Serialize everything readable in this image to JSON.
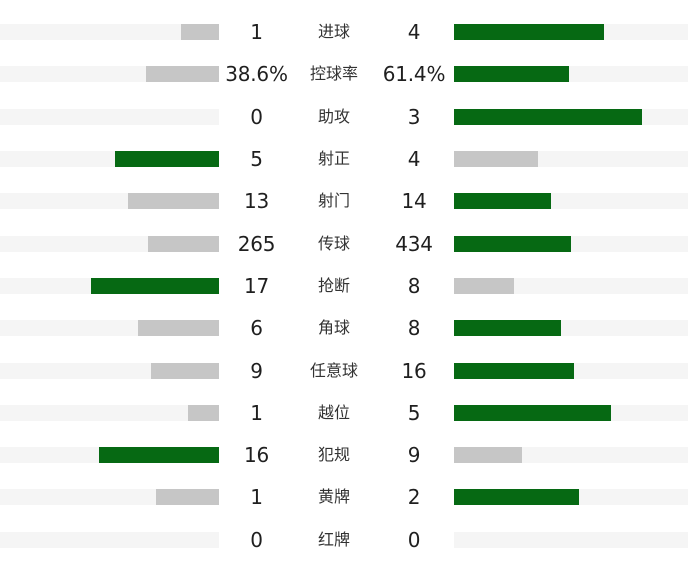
{
  "colors": {
    "background": "#ffffff",
    "win_bar": "#066913",
    "lose_bar": "#c6c6c6",
    "track": "#f5f5f5",
    "value_text": "#1f1f1f",
    "label_text": "#333333"
  },
  "chart_data": {
    "type": "bar",
    "layout": "mirrored-horizontal",
    "legend": "none",
    "grid": "off",
    "bar_rule": "bar length proportional to value/(home+away), max 188px; higher value colored green, lower colored gray; zero value shows empty track",
    "categories": [
      "进球",
      "控球率",
      "助攻",
      "射正",
      "射门",
      "传球",
      "抢断",
      "角球",
      "任意球",
      "越位",
      "犯规",
      "黄牌",
      "红牌"
    ],
    "rows": [
      {
        "label": "进球",
        "home": 1,
        "away": 4,
        "home_display": "1",
        "away_display": "4"
      },
      {
        "label": "控球率",
        "home": 38.6,
        "away": 61.4,
        "home_display": "38.6%",
        "away_display": "61.4%"
      },
      {
        "label": "助攻",
        "home": 0,
        "away": 3,
        "home_display": "0",
        "away_display": "3"
      },
      {
        "label": "射正",
        "home": 5,
        "away": 4,
        "home_display": "5",
        "away_display": "4"
      },
      {
        "label": "射门",
        "home": 13,
        "away": 14,
        "home_display": "13",
        "away_display": "14"
      },
      {
        "label": "传球",
        "home": 265,
        "away": 434,
        "home_display": "265",
        "away_display": "434"
      },
      {
        "label": "抢断",
        "home": 17,
        "away": 8,
        "home_display": "17",
        "away_display": "8"
      },
      {
        "label": "角球",
        "home": 6,
        "away": 8,
        "home_display": "6",
        "away_display": "8"
      },
      {
        "label": "任意球",
        "home": 9,
        "away": 16,
        "home_display": "9",
        "away_display": "16"
      },
      {
        "label": "越位",
        "home": 1,
        "away": 5,
        "home_display": "1",
        "away_display": "5"
      },
      {
        "label": "犯规",
        "home": 16,
        "away": 9,
        "home_display": "16",
        "away_display": "9"
      },
      {
        "label": "黄牌",
        "home": 1,
        "away": 2,
        "home_display": "1",
        "away_display": "2"
      },
      {
        "label": "红牌",
        "home": 0,
        "away": 0,
        "home_display": "0",
        "away_display": "0"
      }
    ]
  }
}
